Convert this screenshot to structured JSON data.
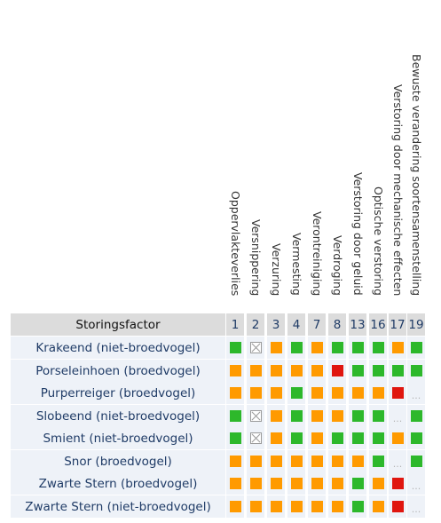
{
  "table": {
    "header_label": "Storingsfactor",
    "factors": [
      {
        "num": "1",
        "name": "Oppervlakteverlies"
      },
      {
        "num": "2",
        "name": "Versnippering"
      },
      {
        "num": "3",
        "name": "Verzuring"
      },
      {
        "num": "4",
        "name": "Vermesting"
      },
      {
        "num": "7",
        "name": "Verontreiniging"
      },
      {
        "num": "8",
        "name": "Verdroging"
      },
      {
        "num": "13",
        "name": "Verstoring door geluid"
      },
      {
        "num": "16",
        "name": "Optische verstoring"
      },
      {
        "num": "17",
        "name": "Verstoring door mechanische effecten"
      },
      {
        "num": "19",
        "name": "Bewuste verandering soortensamenstelling"
      }
    ],
    "legend_states": {
      "g": "green",
      "o": "orange",
      "r": "red",
      "x": "not applicable",
      "n": "no data"
    },
    "colors": {
      "green": "#2db82b",
      "orange": "#ff9a00",
      "red": "#e0160f",
      "header_bg": "#dcdcdc",
      "row_bg": "#eef2f8"
    },
    "rows": [
      {
        "species": "Krakeend (niet-broedvogel)",
        "cells": [
          "g",
          "x",
          "o",
          "g",
          "o",
          "g",
          "g",
          "g",
          "o",
          "g"
        ]
      },
      {
        "species": "Porseleinhoen (broedvogel)",
        "cells": [
          "o",
          "o",
          "o",
          "o",
          "o",
          "r",
          "g",
          "g",
          "g",
          "g"
        ]
      },
      {
        "species": "Purperreiger (broedvogel)",
        "cells": [
          "o",
          "o",
          "o",
          "g",
          "o",
          "o",
          "o",
          "o",
          "r",
          "n"
        ]
      },
      {
        "species": "Slobeend (niet-broedvogel)",
        "cells": [
          "g",
          "x",
          "o",
          "g",
          "o",
          "o",
          "g",
          "g",
          "n",
          "g"
        ]
      },
      {
        "species": "Smient (niet-broedvogel)",
        "cells": [
          "g",
          "x",
          "o",
          "g",
          "o",
          "g",
          "g",
          "g",
          "o",
          "g"
        ]
      },
      {
        "species": "Snor (broedvogel)",
        "cells": [
          "o",
          "o",
          "o",
          "o",
          "o",
          "o",
          "o",
          "g",
          "n",
          "g"
        ]
      },
      {
        "species": "Zwarte Stern (broedvogel)",
        "cells": [
          "o",
          "o",
          "o",
          "o",
          "o",
          "o",
          "g",
          "o",
          "r",
          "n"
        ]
      },
      {
        "species": "Zwarte Stern (niet-broedvogel)",
        "cells": [
          "o",
          "o",
          "o",
          "o",
          "o",
          "o",
          "g",
          "o",
          "r",
          "n"
        ]
      }
    ],
    "dots_text": "..."
  }
}
